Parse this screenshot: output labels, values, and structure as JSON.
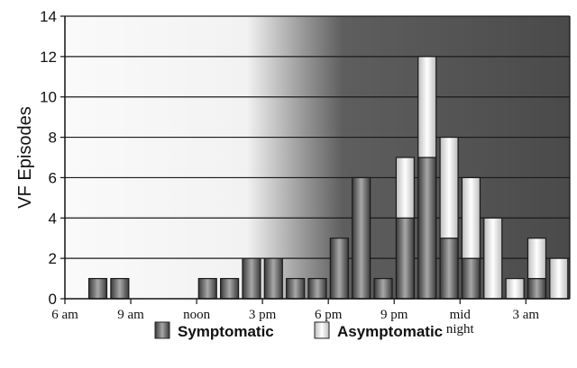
{
  "chart_data": {
    "type": "bar",
    "stacked": true,
    "ylabel": "VF Episodes",
    "ylim": [
      0,
      14
    ],
    "yticks": [
      0,
      2,
      4,
      6,
      8,
      10,
      12,
      14
    ],
    "grid": true,
    "x_tick_labels": [
      {
        "bin": 0,
        "lines": [
          "6 am"
        ]
      },
      {
        "bin": 3,
        "lines": [
          "9 am"
        ]
      },
      {
        "bin": 6,
        "lines": [
          "noon"
        ]
      },
      {
        "bin": 9,
        "lines": [
          "3 pm"
        ]
      },
      {
        "bin": 12,
        "lines": [
          "6 pm"
        ]
      },
      {
        "bin": 15,
        "lines": [
          "9 pm"
        ]
      },
      {
        "bin": 18,
        "lines": [
          "mid",
          "night"
        ]
      },
      {
        "bin": 21,
        "lines": [
          "3 am"
        ]
      }
    ],
    "series": [
      {
        "name": "Symptomatic",
        "values": [
          0,
          1,
          1,
          0,
          0,
          0,
          1,
          1,
          2,
          2,
          1,
          1,
          3,
          6,
          1,
          4,
          7,
          3,
          2,
          0,
          0,
          1,
          0
        ]
      },
      {
        "name": "Asymptomatic",
        "values": [
          0,
          0,
          0,
          0,
          0,
          0,
          0,
          0,
          0,
          0,
          0,
          0,
          0,
          0,
          0,
          3,
          5,
          5,
          4,
          4,
          1,
          2,
          2
        ]
      }
    ],
    "legend_position": "bottom",
    "colors": {
      "symptomatic": "#6b6b6b",
      "asymptomatic": "#e6e6e6"
    }
  }
}
